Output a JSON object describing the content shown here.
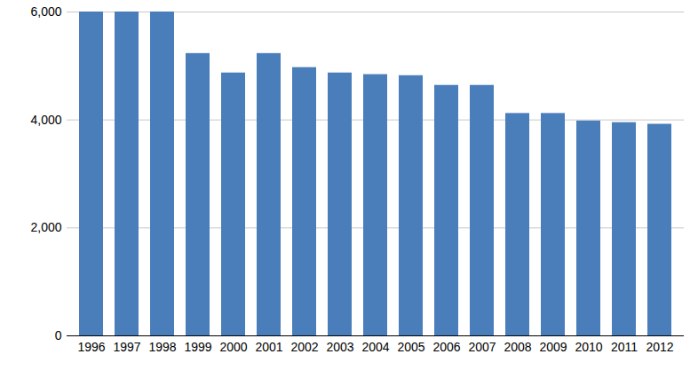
{
  "chart_data": {
    "type": "bar",
    "categories": [
      "1996",
      "1997",
      "1998",
      "1999",
      "2000",
      "2001",
      "2002",
      "2003",
      "2004",
      "2005",
      "2006",
      "2007",
      "2008",
      "2009",
      "2010",
      "2011",
      "2012"
    ],
    "values": [
      6000,
      6000,
      6000,
      5230,
      4870,
      5230,
      4970,
      4870,
      4840,
      4820,
      4640,
      4640,
      4120,
      4120,
      3980,
      3950,
      3920
    ],
    "color": "#4a7ebb",
    "ylim": [
      0,
      6000
    ],
    "yticks": [
      0,
      {
        "value": 2000,
        "label": "2,000"
      },
      {
        "value": 4000,
        "label": "4,000"
      },
      {
        "value": 6000,
        "label": "6,000"
      }
    ],
    "grid": true
  }
}
